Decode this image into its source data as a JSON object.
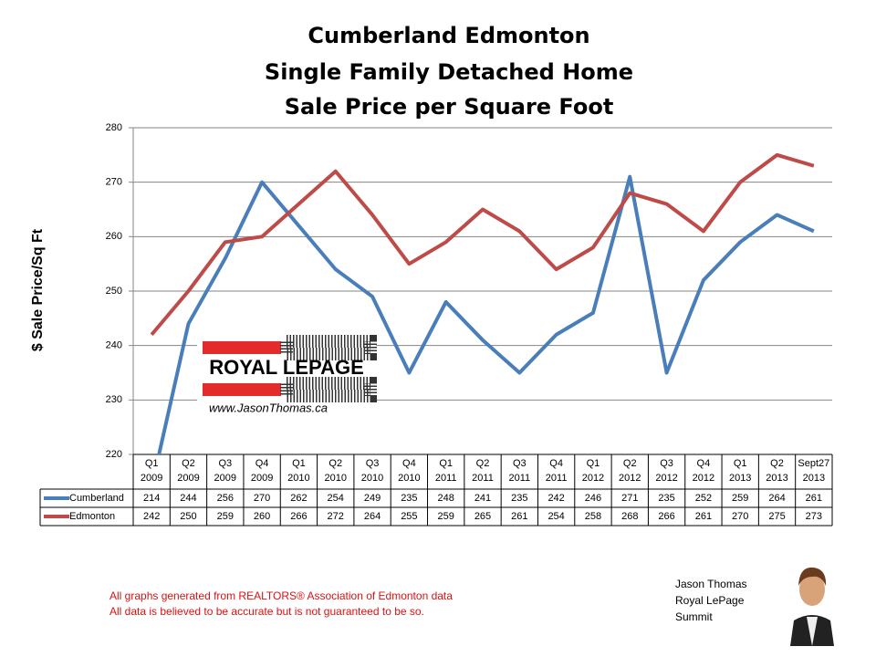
{
  "chart_data": {
    "type": "line",
    "title": [
      "Cumberland Edmonton",
      "Single Family Detached Home",
      "Sale Price per Square Foot"
    ],
    "y_label": "$ Sale Price/Sq Ft",
    "categories": [
      [
        "Q1",
        "2009"
      ],
      [
        "Q2",
        "2009"
      ],
      [
        "Q3",
        "2009"
      ],
      [
        "Q4",
        "2009"
      ],
      [
        "Q1",
        "2010"
      ],
      [
        "Q2",
        "2010"
      ],
      [
        "Q3",
        "2010"
      ],
      [
        "Q4",
        "2010"
      ],
      [
        "Q1",
        "2011"
      ],
      [
        "Q2",
        "2011"
      ],
      [
        "Q3",
        "2011"
      ],
      [
        "Q4",
        "2011"
      ],
      [
        "Q1",
        "2012"
      ],
      [
        "Q2",
        "2012"
      ],
      [
        "Q3",
        "2012"
      ],
      [
        "Q4",
        "2012"
      ],
      [
        "Q1",
        "2013"
      ],
      [
        "Q2",
        "2013"
      ],
      [
        "Sept27",
        "2013"
      ]
    ],
    "series": [
      {
        "name": "Cumberland",
        "color": "#4a7ebb",
        "values": [
          214,
          244,
          256,
          270,
          262,
          254,
          249,
          235,
          248,
          241,
          235,
          242,
          246,
          271,
          235,
          252,
          259,
          264,
          261
        ]
      },
      {
        "name": "Edmonton",
        "color": "#be4b48",
        "values": [
          242,
          250,
          259,
          260,
          266,
          272,
          264,
          255,
          259,
          265,
          261,
          254,
          258,
          268,
          266,
          261,
          270,
          275,
          273
        ]
      }
    ],
    "ylim": [
      220,
      280
    ],
    "yticks": [
      220,
      230,
      240,
      250,
      260,
      270,
      280
    ],
    "grid": true,
    "logo": {
      "brand": "ROYAL LEPAGE",
      "url": "www.JasonThomas.ca"
    },
    "notes": [
      "All graphs generated from REALTORS® Association of Edmonton data",
      "All data is believed to be accurate but is not guaranteed to be so."
    ],
    "author": [
      "Jason Thomas",
      "Royal LePage",
      "Summit"
    ]
  }
}
